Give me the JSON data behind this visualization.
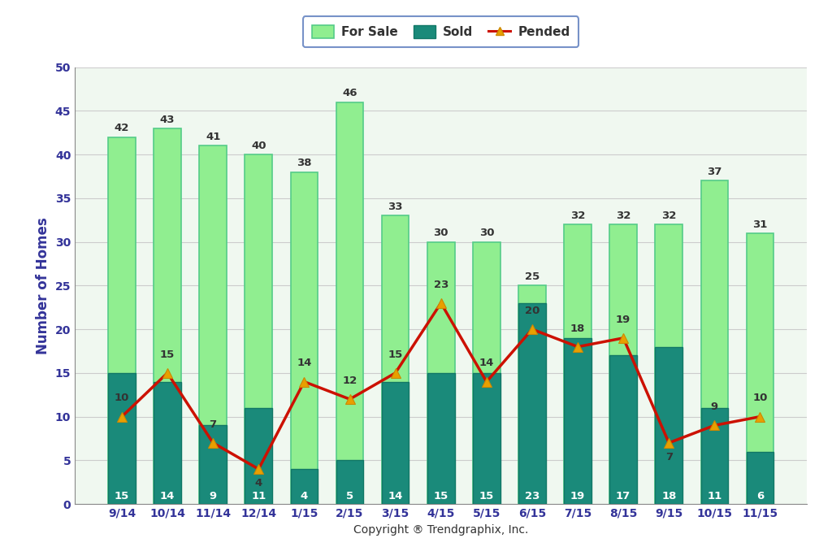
{
  "categories": [
    "9/14",
    "10/14",
    "11/14",
    "12/14",
    "1/15",
    "2/15",
    "3/15",
    "4/15",
    "5/15",
    "6/15",
    "7/15",
    "8/15",
    "9/15",
    "10/15",
    "11/15"
  ],
  "for_sale": [
    42,
    43,
    41,
    40,
    38,
    46,
    33,
    30,
    30,
    25,
    32,
    32,
    32,
    37,
    31
  ],
  "sold": [
    15,
    14,
    9,
    11,
    4,
    5,
    14,
    15,
    15,
    23,
    19,
    17,
    18,
    11,
    6
  ],
  "pended": [
    10,
    15,
    7,
    4,
    14,
    12,
    15,
    23,
    14,
    20,
    18,
    19,
    7,
    9,
    10
  ],
  "for_sale_color": "#90EE90",
  "for_sale_edge_color": "#55cc88",
  "sold_color": "#1a8a7a",
  "sold_edge_color": "#117766",
  "pended_line_color": "#cc1100",
  "pended_marker_face": "#e8a000",
  "pended_marker_edge": "#cc8800",
  "ylabel": "Number of Homes",
  "xlabel": "Copyright ® Trendgraphix, Inc.",
  "ylim": [
    0,
    50
  ],
  "yticks": [
    0,
    5,
    10,
    15,
    20,
    25,
    30,
    35,
    40,
    45,
    50
  ],
  "background_color": "#ffffff",
  "plot_bg_color": "#f0f8f0",
  "legend_for_sale": "For Sale",
  "legend_sold": "Sold",
  "legend_pended": "Pended",
  "bar_width": 0.6,
  "for_sale_label_color": "#333333",
  "sold_label_color": "#ffffff",
  "pended_label_color": "#333333",
  "axis_label_color": "#333399",
  "tick_label_color": "#333399",
  "pended_label_offsets": [
    1.5,
    1.5,
    1.5,
    -2.2,
    1.5,
    1.5,
    1.5,
    1.5,
    1.5,
    1.5,
    1.5,
    1.5,
    -2.2,
    1.5,
    1.5
  ]
}
